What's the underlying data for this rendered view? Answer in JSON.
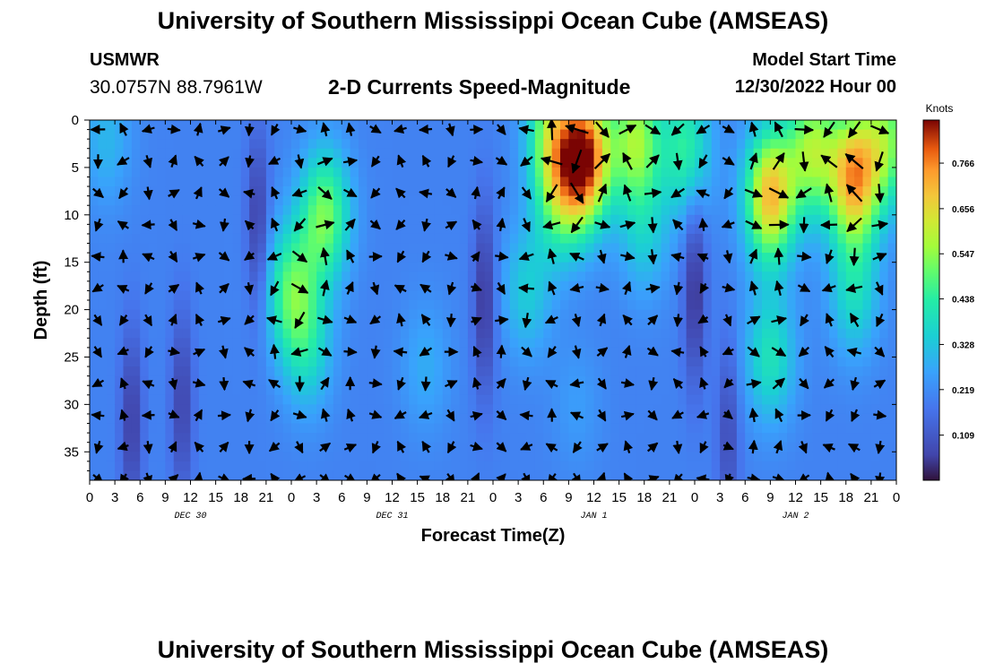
{
  "page": {
    "title": "University of Southern Mississippi Ocean Cube (AMSEAS)",
    "footer_title": "University of Southern Mississippi Ocean Cube (AMSEAS)",
    "station": "USMWR",
    "coords": "30.0757N  88.7961W",
    "plot_title": "2-D Currents Speed-Magnitude",
    "model_start_label": "Model Start Time",
    "model_start_value": "12/30/2022 Hour 00"
  },
  "chart_data": {
    "type": "heatmap",
    "title": "2-D Currents Speed-Magnitude",
    "xlabel": "Forecast Time(Z)",
    "ylabel": "Depth (ft)",
    "x_range_hours": [
      0,
      96
    ],
    "ylim": [
      38,
      0
    ],
    "x_tick_labels": [
      "0",
      "3",
      "6",
      "9",
      "12",
      "15",
      "18",
      "21",
      "0",
      "3",
      "6",
      "9",
      "12",
      "15",
      "18",
      "21",
      "0",
      "3",
      "6",
      "9",
      "12",
      "15",
      "18",
      "21",
      "0",
      "3",
      "6",
      "9",
      "12",
      "15",
      "18",
      "21",
      "0"
    ],
    "y_ticks": [
      0,
      5,
      10,
      15,
      20,
      25,
      30,
      35
    ],
    "date_labels": [
      {
        "label": "DEC 30",
        "hour": 12
      },
      {
        "label": "DEC 31",
        "hour": 36
      },
      {
        "label": "JAN 1",
        "hour": 60
      },
      {
        "label": "JAN 2",
        "hour": 84
      }
    ],
    "colorbar": {
      "unit": "Knots",
      "min": 0.0,
      "max": 0.87,
      "ticks": [
        "0.766",
        "0.656",
        "0.547",
        "0.438",
        "0.328",
        "0.219",
        "0.109"
      ],
      "tick_values": [
        0.766,
        0.656,
        0.547,
        0.438,
        0.328,
        0.219,
        0.109
      ]
    },
    "speed_hotspots": [
      {
        "hour": 2,
        "depth": 2,
        "speed": 0.3
      },
      {
        "hour": 24,
        "depth": 18,
        "speed": 0.47
      },
      {
        "hour": 26,
        "depth": 24,
        "speed": 0.36
      },
      {
        "hour": 28,
        "depth": 10,
        "speed": 0.52
      },
      {
        "hour": 40,
        "depth": 26,
        "speed": 0.28
      },
      {
        "hour": 52,
        "depth": 18,
        "speed": 0.34
      },
      {
        "hour": 55,
        "depth": 1,
        "speed": 0.5
      },
      {
        "hour": 56,
        "depth": 8,
        "speed": 0.45
      },
      {
        "hour": 58,
        "depth": 30,
        "speed": 0.25
      },
      {
        "hour": 59,
        "depth": 4,
        "speed": 0.82
      },
      {
        "hour": 65,
        "depth": 2,
        "speed": 0.55
      },
      {
        "hour": 66,
        "depth": 12,
        "speed": 0.33
      },
      {
        "hour": 71,
        "depth": 3,
        "speed": 0.44
      },
      {
        "hour": 81,
        "depth": 8,
        "speed": 0.7
      },
      {
        "hour": 81,
        "depth": 25,
        "speed": 0.4
      },
      {
        "hour": 86,
        "depth": 3,
        "speed": 0.55
      },
      {
        "hour": 91,
        "depth": 6,
        "speed": 0.72
      },
      {
        "hour": 95,
        "depth": 2,
        "speed": 0.5
      },
      {
        "hour": 91,
        "depth": 18,
        "speed": 0.38
      }
    ],
    "speed_lows": [
      {
        "hour": 5,
        "depth": 32,
        "speed": 0.05
      },
      {
        "hour": 11,
        "depth": 30,
        "speed": 0.06
      },
      {
        "hour": 20,
        "depth": 11,
        "speed": 0.05
      },
      {
        "hour": 47,
        "depth": 19,
        "speed": 0.03
      },
      {
        "hour": 72,
        "depth": 18,
        "speed": 0.03
      },
      {
        "hour": 76,
        "depth": 33,
        "speed": 0.08
      }
    ]
  }
}
